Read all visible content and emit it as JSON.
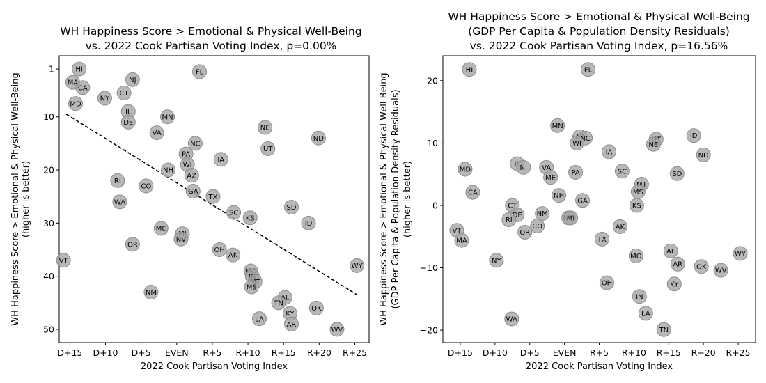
{
  "figure": {
    "point_color": "#a6a6a6",
    "trend_color": "#000000"
  },
  "chart_data": [
    {
      "type": "scatter",
      "title": [
        "WH Happiness Score > Emotional & Physical Well-Being",
        "vs. 2022 Cook Partisan Voting Index, p=0.00%"
      ],
      "xlabel": "2022 Cook Partisan Voting Index",
      "ylabel": [
        "WH Happiness Score > Emotional & Physical Well-Being",
        "(higher is better)"
      ],
      "xlim": [
        -16.5,
        27
      ],
      "ylim": [
        52.5,
        -1.5
      ],
      "y_inverted": true,
      "xticks": [
        -15,
        -10,
        -5,
        0,
        5,
        10,
        15,
        20,
        25
      ],
      "xtick_labels": [
        "D+15",
        "D+10",
        "D+5",
        "EVEN",
        "R+5",
        "R+10",
        "R+15",
        "R+20",
        "R+25"
      ],
      "yticks": [
        1,
        10,
        20,
        30,
        40,
        50
      ],
      "ytick_labels": [
        "1",
        "10",
        "20",
        "30",
        "40",
        "50"
      ],
      "grid": false,
      "trendline": {
        "x": [
          -15.5,
          25.3
        ],
        "y": [
          9.5,
          43.5
        ]
      },
      "points": [
        {
          "label": "HI",
          "x": -13.7,
          "y": 1
        },
        {
          "label": "FL",
          "x": 3.2,
          "y": 1.5
        },
        {
          "label": "NJ",
          "x": -6.2,
          "y": 3
        },
        {
          "label": "MA",
          "x": -14.6,
          "y": 3.5
        },
        {
          "label": "CA",
          "x": -13.2,
          "y": 4.5
        },
        {
          "label": "CT",
          "x": -7.4,
          "y": 5.5
        },
        {
          "label": "NY",
          "x": -10.1,
          "y": 6.5
        },
        {
          "label": "MD",
          "x": -14.2,
          "y": 7.5
        },
        {
          "label": "IL",
          "x": -6.8,
          "y": 9
        },
        {
          "label": "MN",
          "x": -1.3,
          "y": 10
        },
        {
          "label": "DE",
          "x": -6.8,
          "y": 11
        },
        {
          "label": "NE",
          "x": 12.4,
          "y": 12
        },
        {
          "label": "VA",
          "x": -2.8,
          "y": 13
        },
        {
          "label": "ND",
          "x": 19.9,
          "y": 14
        },
        {
          "label": "NC",
          "x": 2.6,
          "y": 15
        },
        {
          "label": "UT",
          "x": 12.8,
          "y": 16
        },
        {
          "label": "PA",
          "x": 1.3,
          "y": 17
        },
        {
          "label": "IA",
          "x": 6.2,
          "y": 18
        },
        {
          "label": "WI",
          "x": 1.5,
          "y": 19
        },
        {
          "label": "NH",
          "x": -1.2,
          "y": 20
        },
        {
          "label": "AZ",
          "x": 2.1,
          "y": 21
        },
        {
          "label": "RI",
          "x": -8.3,
          "y": 22
        },
        {
          "label": "CO",
          "x": -4.3,
          "y": 23
        },
        {
          "label": "GA",
          "x": 2.3,
          "y": 24
        },
        {
          "label": "TX",
          "x": 5.1,
          "y": 25
        },
        {
          "label": "WA",
          "x": -8.0,
          "y": 26
        },
        {
          "label": "SD",
          "x": 16.1,
          "y": 27
        },
        {
          "label": "SC",
          "x": 8.0,
          "y": 28
        },
        {
          "label": "KS",
          "x": 10.3,
          "y": 29
        },
        {
          "label": "ID",
          "x": 18.5,
          "y": 30
        },
        {
          "label": "ME",
          "x": -2.2,
          "y": 31
        },
        {
          "label": "MI",
          "x": 0.8,
          "y": 32
        },
        {
          "label": "NV",
          "x": 0.6,
          "y": 33
        },
        {
          "label": "OR",
          "x": -6.2,
          "y": 34
        },
        {
          "label": "OH",
          "x": 6.0,
          "y": 35
        },
        {
          "label": "AK",
          "x": 7.9,
          "y": 36
        },
        {
          "label": "VT",
          "x": -15.9,
          "y": 37
        },
        {
          "label": "WY",
          "x": 25.3,
          "y": 38
        },
        {
          "label": "MO",
          "x": 10.4,
          "y": 39
        },
        {
          "label": "IN",
          "x": 10.6,
          "y": 40
        },
        {
          "label": "MT",
          "x": 11.0,
          "y": 41
        },
        {
          "label": "MS",
          "x": 10.5,
          "y": 42
        },
        {
          "label": "NM",
          "x": -3.6,
          "y": 43
        },
        {
          "label": "AL",
          "x": 15.2,
          "y": 44
        },
        {
          "label": "TN",
          "x": 14.3,
          "y": 45
        },
        {
          "label": "OK",
          "x": 19.6,
          "y": 46
        },
        {
          "label": "KY",
          "x": 15.9,
          "y": 47
        },
        {
          "label": "LA",
          "x": 11.6,
          "y": 48
        },
        {
          "label": "AR",
          "x": 16.1,
          "y": 49
        },
        {
          "label": "WV",
          "x": 22.5,
          "y": 50
        }
      ]
    },
    {
      "type": "scatter",
      "title": [
        "WH Happiness Score > Emotional & Physical Well-Being",
        "(GDP Per Capita & Population Density Residuals)",
        "vs. 2022 Cook Partisan Voting Index, p=16.56%"
      ],
      "xlabel": "2022 Cook Partisan Voting Index",
      "ylabel": [
        "WH Happiness Score > Emotional & Physical Well-Being",
        "(GDP Per Capita & Population Density Residuals)",
        "(higher is better)"
      ],
      "xlim": [
        -17.5,
        27.5
      ],
      "ylim": [
        -22,
        24
      ],
      "y_inverted": false,
      "xticks": [
        -15,
        -10,
        -5,
        0,
        5,
        10,
        15,
        20,
        25
      ],
      "xtick_labels": [
        "D+15",
        "D+10",
        "D+5",
        "EVEN",
        "R+5",
        "R+10",
        "R+15",
        "R+20",
        "R+25"
      ],
      "yticks": [
        -20,
        -10,
        0,
        10,
        20
      ],
      "ytick_labels": [
        "−20",
        "−10",
        "0",
        "10",
        "20"
      ],
      "grid": false,
      "points": [
        {
          "label": "HI",
          "x": -13.7,
          "y": 21.8
        },
        {
          "label": "FL",
          "x": 3.4,
          "y": 21.8
        },
        {
          "label": "MN",
          "x": -1.0,
          "y": 12.8
        },
        {
          "label": "AZ",
          "x": 2.2,
          "y": 11.0
        },
        {
          "label": "NC",
          "x": 3.0,
          "y": 10.8
        },
        {
          "label": "UT",
          "x": 13.2,
          "y": 10.6
        },
        {
          "label": "ID",
          "x": 18.6,
          "y": 11.2
        },
        {
          "label": "WI",
          "x": 1.8,
          "y": 10.0
        },
        {
          "label": "NE",
          "x": 12.8,
          "y": 9.8
        },
        {
          "label": "IA",
          "x": 6.4,
          "y": 8.6
        },
        {
          "label": "ND",
          "x": 20.0,
          "y": 8.1
        },
        {
          "label": "IL",
          "x": -6.8,
          "y": 6.7
        },
        {
          "label": "NJ",
          "x": -5.9,
          "y": 6.1
        },
        {
          "label": "VA",
          "x": -2.6,
          "y": 6.1
        },
        {
          "label": "MD",
          "x": -14.3,
          "y": 5.8
        },
        {
          "label": "SC",
          "x": 8.3,
          "y": 5.5
        },
        {
          "label": "PA",
          "x": 1.6,
          "y": 5.3
        },
        {
          "label": "SD",
          "x": 16.2,
          "y": 5.1
        },
        {
          "label": "ME",
          "x": -2.0,
          "y": 4.5
        },
        {
          "label": "MT",
          "x": 11.1,
          "y": 3.4
        },
        {
          "label": "MS",
          "x": 10.6,
          "y": 2.2
        },
        {
          "label": "CA",
          "x": -13.2,
          "y": 2.1
        },
        {
          "label": "NH",
          "x": -0.8,
          "y": 1.6
        },
        {
          "label": "GA",
          "x": 2.6,
          "y": 0.8
        },
        {
          "label": "KS",
          "x": 10.4,
          "y": 0.0
        },
        {
          "label": "CT",
          "x": -7.5,
          "y": 0.0
        },
        {
          "label": "DE",
          "x": -6.8,
          "y": -1.5
        },
        {
          "label": "NM",
          "x": -3.2,
          "y": -1.3
        },
        {
          "label": "NV",
          "x": 0.6,
          "y": -2.0
        },
        {
          "label": "MI",
          "x": 0.9,
          "y": -2.0
        },
        {
          "label": "RI",
          "x": -8.0,
          "y": -2.3
        },
        {
          "label": "CO",
          "x": -3.9,
          "y": -3.3
        },
        {
          "label": "AK",
          "x": 8.0,
          "y": -3.4
        },
        {
          "label": "VT",
          "x": -15.5,
          "y": -4.0
        },
        {
          "label": "OR",
          "x": -5.7,
          "y": -4.3
        },
        {
          "label": "MA",
          "x": -14.8,
          "y": -5.6
        },
        {
          "label": "TX",
          "x": 5.4,
          "y": -5.4
        },
        {
          "label": "AL",
          "x": 15.3,
          "y": -7.3
        },
        {
          "label": "WY",
          "x": 25.3,
          "y": -7.7
        },
        {
          "label": "MO",
          "x": 10.3,
          "y": -8.1
        },
        {
          "label": "NY",
          "x": -9.8,
          "y": -8.8
        },
        {
          "label": "AR",
          "x": 16.3,
          "y": -9.4
        },
        {
          "label": "OK",
          "x": 19.7,
          "y": -9.8
        },
        {
          "label": "WV",
          "x": 22.5,
          "y": -10.4
        },
        {
          "label": "OH",
          "x": 6.1,
          "y": -12.4
        },
        {
          "label": "KY",
          "x": 15.8,
          "y": -12.6
        },
        {
          "label": "IN",
          "x": 10.8,
          "y": -14.6
        },
        {
          "label": "LA",
          "x": 11.7,
          "y": -17.3
        },
        {
          "label": "WA",
          "x": -7.6,
          "y": -18.2
        },
        {
          "label": "TN",
          "x": 14.3,
          "y": -19.9
        }
      ]
    }
  ]
}
